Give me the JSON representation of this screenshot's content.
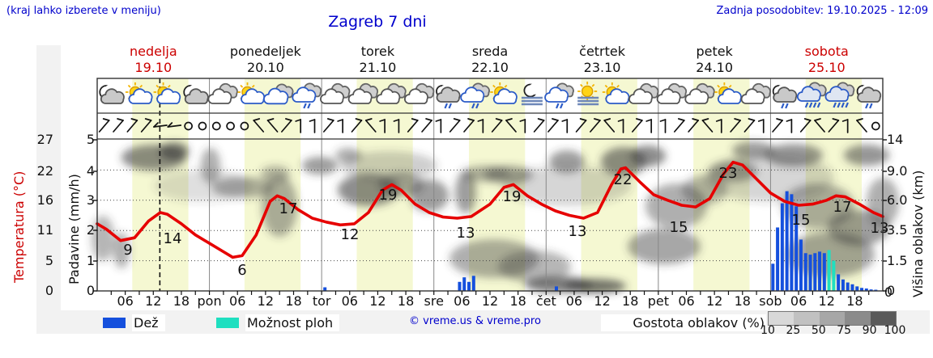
{
  "header": {
    "hint": "(kraj lahko izberete v meniju)",
    "title": "Zagreb 7 dni",
    "updated": "Zadnja posodobitev: 19.10.2025 - 12:09"
  },
  "days": [
    {
      "name": "nedelja",
      "date": "19.10",
      "highlight": true
    },
    {
      "name": "ponedeljek",
      "date": "20.10",
      "highlight": false
    },
    {
      "name": "torek",
      "date": "21.10",
      "highlight": false
    },
    {
      "name": "sreda",
      "date": "22.10",
      "highlight": false
    },
    {
      "name": "četrtek",
      "date": "23.10",
      "highlight": false
    },
    {
      "name": "petek",
      "date": "24.10",
      "highlight": false
    },
    {
      "name": "sobota",
      "date": "25.10",
      "highlight": true
    }
  ],
  "axes": {
    "temperature": {
      "label": "Temperatura (°C)",
      "ticks": [
        "27",
        "22",
        "16",
        "11",
        "5",
        "0"
      ]
    },
    "precipitation": {
      "label": "Padavine (mm/h)",
      "ticks": [
        "5",
        "4",
        "3",
        "2",
        "1",
        "0"
      ]
    },
    "cloud_height": {
      "label": "Višina oblakov (km)",
      "ticks": [
        "14",
        "9.0",
        "6.0",
        "3.5",
        "1.5",
        "0"
      ]
    },
    "x_hour_labels": [
      "06",
      "12",
      "18"
    ],
    "x_day_abbrs": [
      "pon",
      "tor",
      "sre",
      "čet",
      "pet",
      "sob"
    ],
    "x_right_zero": "0"
  },
  "legend": {
    "rain_label": "Dež",
    "showers_label": "Možnost ploh",
    "credit": "© vreme.us & vreme.pro",
    "cloud_density_label": "Gostota oblakov (%)",
    "gradient_ticks": [
      "10",
      "25",
      "50",
      "75",
      "90",
      "100"
    ],
    "gradient_colors": [
      "#d8d8d8",
      "#c1c1c1",
      "#a7a7a7",
      "#8b8b8b",
      "#5a5a5a"
    ]
  },
  "colors": {
    "accent_blue": "#0000cc",
    "highlight_red": "#cc0000",
    "curve_red": "#e60000",
    "rain_blue": "#1550dd",
    "showers_cyan": "#1fdfc0",
    "day_band": "#f5f8d2",
    "frame": "#333333",
    "divider": "#888888"
  },
  "chart_data": {
    "type": "meteogram",
    "x_unit": "hours_from_sunday_00",
    "x_range": [
      0,
      168
    ],
    "current_time_hour": 13.4,
    "daylight_hours": [
      7.5,
      19.5
    ],
    "temperature_series": {
      "name": "Temperatura",
      "unit": "°C",
      "ylim": [
        0,
        27
      ],
      "points": [
        [
          0,
          12
        ],
        [
          2,
          11
        ],
        [
          5,
          9
        ],
        [
          8,
          9.5
        ],
        [
          11,
          12.5
        ],
        [
          13.5,
          14
        ],
        [
          15,
          13.7
        ],
        [
          18,
          12
        ],
        [
          21,
          10
        ],
        [
          24,
          8.5
        ],
        [
          27,
          7
        ],
        [
          29,
          6
        ],
        [
          31,
          6.3
        ],
        [
          34,
          10
        ],
        [
          37,
          16
        ],
        [
          38.5,
          17
        ],
        [
          40,
          16.5
        ],
        [
          43,
          14.5
        ],
        [
          46,
          13
        ],
        [
          49,
          12.3
        ],
        [
          52,
          11.8
        ],
        [
          55,
          12
        ],
        [
          58,
          14
        ],
        [
          61,
          18
        ],
        [
          63,
          19
        ],
        [
          65,
          18
        ],
        [
          68,
          15.5
        ],
        [
          71,
          14
        ],
        [
          74,
          13.2
        ],
        [
          77,
          13
        ],
        [
          80,
          13.3
        ],
        [
          84,
          15.5
        ],
        [
          87,
          18.5
        ],
        [
          89,
          19
        ],
        [
          92,
          17
        ],
        [
          95,
          15.5
        ],
        [
          98,
          14.3
        ],
        [
          101,
          13.5
        ],
        [
          104,
          13
        ],
        [
          107,
          14
        ],
        [
          110,
          19
        ],
        [
          112,
          21.8
        ],
        [
          113,
          22
        ],
        [
          116,
          19.5
        ],
        [
          119,
          17.2
        ],
        [
          122,
          16.2
        ],
        [
          125,
          15.3
        ],
        [
          128,
          15
        ],
        [
          131,
          16.5
        ],
        [
          134,
          21
        ],
        [
          136,
          23
        ],
        [
          138,
          22.5
        ],
        [
          141,
          20
        ],
        [
          144,
          17.5
        ],
        [
          147,
          16
        ],
        [
          150,
          15.3
        ],
        [
          153,
          15.5
        ],
        [
          156,
          16.2
        ],
        [
          158,
          17
        ],
        [
          160,
          16.8
        ],
        [
          163,
          15.5
        ],
        [
          166,
          14
        ],
        [
          168,
          13.3
        ]
      ],
      "point_labels": [
        {
          "x": 158,
          "y": 309,
          "t": "9"
        },
        {
          "x": 213,
          "y": 295,
          "t": "14"
        },
        {
          "x": 299,
          "y": 334,
          "t": "6"
        },
        {
          "x": 356,
          "y": 258,
          "t": "17"
        },
        {
          "x": 432,
          "y": 290,
          "t": "12"
        },
        {
          "x": 479,
          "y": 241,
          "t": "19"
        },
        {
          "x": 575,
          "y": 288,
          "t": "13"
        },
        {
          "x": 632,
          "y": 243,
          "t": "19"
        },
        {
          "x": 713,
          "y": 286,
          "t": "13"
        },
        {
          "x": 769,
          "y": 222,
          "t": "22"
        },
        {
          "x": 838,
          "y": 281,
          "t": "15"
        },
        {
          "x": 899,
          "y": 214,
          "t": "23"
        },
        {
          "x": 989,
          "y": 272,
          "t": "15"
        },
        {
          "x": 1040,
          "y": 256,
          "t": "17"
        },
        {
          "x": 1086,
          "y": 282,
          "t": "13"
        }
      ]
    },
    "precipitation_series": {
      "name": "Padavine",
      "unit": "mm/h",
      "ylim": [
        0,
        5
      ],
      "bars": [
        {
          "h": 48.7,
          "v": 0.12,
          "kind": "rain"
        },
        {
          "h": 77.5,
          "v": 0.3,
          "kind": "rain"
        },
        {
          "h": 78.5,
          "v": 0.45,
          "kind": "rain"
        },
        {
          "h": 79.5,
          "v": 0.3,
          "kind": "rain"
        },
        {
          "h": 80.5,
          "v": 0.5,
          "kind": "rain"
        },
        {
          "h": 98.2,
          "v": 0.15,
          "kind": "rain"
        },
        {
          "h": 144.5,
          "v": 0.9,
          "kind": "rain"
        },
        {
          "h": 145.5,
          "v": 2.1,
          "kind": "rain"
        },
        {
          "h": 146.5,
          "v": 2.9,
          "kind": "rain"
        },
        {
          "h": 147.5,
          "v": 3.3,
          "kind": "rain"
        },
        {
          "h": 148.5,
          "v": 3.2,
          "kind": "rain"
        },
        {
          "h": 149.5,
          "v": 2.8,
          "kind": "rain"
        },
        {
          "h": 150.5,
          "v": 1.7,
          "kind": "rain"
        },
        {
          "h": 151.5,
          "v": 1.25,
          "kind": "rain"
        },
        {
          "h": 152.5,
          "v": 1.2,
          "kind": "rain"
        },
        {
          "h": 153.5,
          "v": 1.25,
          "kind": "rain"
        },
        {
          "h": 154.5,
          "v": 1.3,
          "kind": "rain"
        },
        {
          "h": 155.5,
          "v": 1.25,
          "kind": "rain"
        },
        {
          "h": 156.5,
          "v": 1.35,
          "kind": "showers"
        },
        {
          "h": 157.5,
          "v": 1.0,
          "kind": "showers"
        },
        {
          "h": 158.5,
          "v": 0.55,
          "kind": "rain"
        },
        {
          "h": 159.5,
          "v": 0.38,
          "kind": "rain"
        },
        {
          "h": 160.5,
          "v": 0.28,
          "kind": "rain"
        },
        {
          "h": 161.5,
          "v": 0.22,
          "kind": "rain"
        },
        {
          "h": 162.5,
          "v": 0.15,
          "kind": "rain"
        },
        {
          "h": 163.5,
          "v": 0.1,
          "kind": "rain"
        },
        {
          "h": 164.5,
          "v": 0.08,
          "kind": "rain"
        },
        {
          "h": 165.5,
          "v": 0.05,
          "kind": "rain"
        },
        {
          "h": 166.5,
          "v": 0.04,
          "kind": "rain"
        }
      ]
    },
    "cloud_blobs": [
      [
        127,
        295,
        14,
        28,
        0.45
      ],
      [
        150,
        310,
        10,
        22,
        0.5
      ],
      [
        190,
        195,
        40,
        16,
        0.7
      ],
      [
        215,
        187,
        18,
        11,
        0.8
      ],
      [
        260,
        205,
        12,
        22,
        0.5
      ],
      [
        300,
        232,
        38,
        13,
        0.5
      ],
      [
        345,
        255,
        22,
        38,
        0.5
      ],
      [
        340,
        215,
        18,
        10,
        0.45
      ],
      [
        395,
        205,
        22,
        11,
        0.6
      ],
      [
        430,
        192,
        16,
        9,
        0.5
      ],
      [
        455,
        235,
        38,
        20,
        0.7
      ],
      [
        495,
        228,
        28,
        14,
        0.55
      ],
      [
        530,
        242,
        24,
        20,
        0.6
      ],
      [
        575,
        238,
        13,
        26,
        0.6
      ],
      [
        600,
        215,
        30,
        10,
        0.5
      ],
      [
        628,
        216,
        30,
        11,
        0.55
      ],
      [
        610,
        320,
        55,
        24,
        0.5
      ],
      [
        660,
        330,
        45,
        20,
        0.45
      ],
      [
        690,
        352,
        42,
        10,
        0.8
      ],
      [
        735,
        354,
        38,
        9,
        0.85
      ],
      [
        700,
        200,
        22,
        14,
        0.6
      ],
      [
        770,
        200,
        28,
        18,
        0.7
      ],
      [
        800,
        193,
        22,
        13,
        0.7
      ],
      [
        835,
        255,
        38,
        28,
        0.5
      ],
      [
        820,
        305,
        45,
        22,
        0.55
      ],
      [
        870,
        235,
        28,
        18,
        0.45
      ],
      [
        905,
        212,
        30,
        13,
        0.55
      ],
      [
        930,
        186,
        26,
        11,
        0.6
      ],
      [
        980,
        192,
        36,
        14,
        0.65
      ],
      [
        1010,
        255,
        45,
        28,
        0.5
      ],
      [
        1025,
        315,
        55,
        28,
        0.55
      ],
      [
        1060,
        282,
        38,
        22,
        0.6
      ],
      [
        1070,
        192,
        28,
        13,
        0.65
      ],
      [
        1090,
        250,
        20,
        30,
        0.5
      ],
      [
        480,
        205,
        60,
        18,
        0.3
      ],
      [
        700,
        230,
        80,
        25,
        0.25
      ],
      [
        950,
        220,
        80,
        30,
        0.25
      ],
      [
        250,
        230,
        60,
        20,
        0.2
      ]
    ],
    "weather_icons": [
      "moon-cloud",
      "sun-cloud",
      "sun-cloud",
      "moon-cloud",
      "clouds",
      "sun-cloud",
      "cloud-blue",
      "cloud-drizzle",
      "clouds",
      "clouds",
      "clouds",
      "clouds",
      "moon-drizzle",
      "cloud-drizzle",
      "sun-cloud",
      "moon-fog",
      "cloud-drizzle",
      "sun-fog",
      "sun-cloud",
      "clouds",
      "clouds",
      "clouds",
      "sun-cloud",
      "clouds",
      "moon-drizzle",
      "cloud-rain",
      "cloud-rain",
      "moon-drizzle"
    ],
    "wind_barbs_3h": [
      "sw",
      "sw",
      "sw",
      "sw",
      "w",
      "w",
      "calm",
      "calm",
      "calm",
      "calm",
      "calm",
      "nw",
      "nw",
      "sw",
      "n",
      "n",
      "sw",
      "n",
      "sw",
      "nw",
      "n",
      "n",
      "sw",
      "sw",
      "n",
      "sw",
      "sw",
      "n",
      "sw",
      "nw",
      "n",
      "sw",
      "sw",
      "n",
      "sw",
      "sw",
      "nw",
      "n",
      "sw",
      "n",
      "n",
      "sw",
      "sw",
      "nw",
      "n",
      "sw",
      "sw",
      "n",
      "sw",
      "n",
      "sw",
      "nw",
      "sw",
      "n",
      "nw",
      "calm"
    ]
  }
}
